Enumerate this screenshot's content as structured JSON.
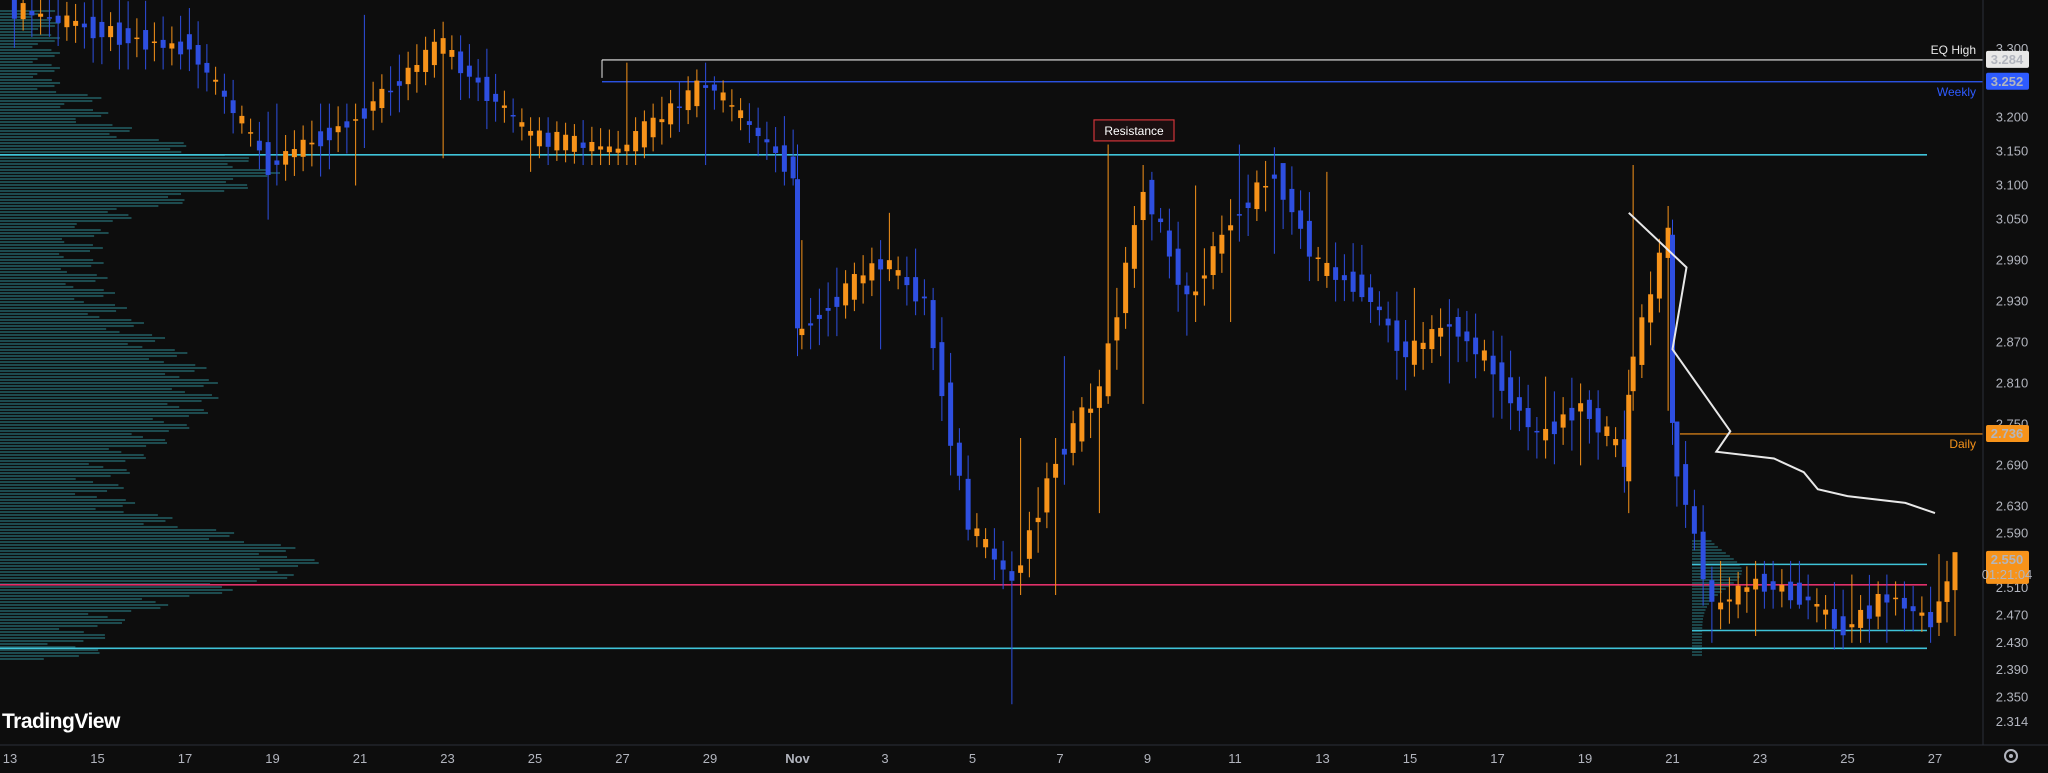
{
  "brand": "TradingView",
  "colors": {
    "background": "#0d0d0d",
    "bull": "#f7931a",
    "bear": "#2e4fe0",
    "cyan_line": "#3fc3d8",
    "magenta_line": "#e0306a",
    "white_line": "#e8e8e8",
    "weekly": "#2e5bff",
    "daily": "#f7931a",
    "volume_profile": "#2b7f87",
    "resistance_border": "#d0343a",
    "axis_text": "#b2b5be"
  },
  "icons": {
    "settings": "gear-icon"
  },
  "chart_data": {
    "type": "candlestick",
    "title": "",
    "y_range": [
      2.29,
      3.33
    ],
    "y_ticks": [
      "3.300",
      "3.200",
      "3.150",
      "3.100",
      "3.050",
      "2.990",
      "2.930",
      "2.870",
      "2.810",
      "2.750",
      "2.690",
      "2.630",
      "2.590",
      "2.510",
      "2.470",
      "2.430",
      "2.390",
      "2.350",
      "2.314"
    ],
    "x_ticks": [
      "13",
      "15",
      "17",
      "19",
      "21",
      "23",
      "25",
      "27",
      "29",
      "Nov",
      "3",
      "5",
      "7",
      "9",
      "11",
      "13",
      "15",
      "17",
      "19",
      "21",
      "23",
      "25",
      "27"
    ],
    "grid": false,
    "current_price": "2.550",
    "countdown": "01:21:04",
    "levels": [
      {
        "name": "EQ High",
        "value": 3.284,
        "value_label": "3.284",
        "color": "#e8e8e8"
      },
      {
        "name": "Weekly",
        "value": 3.252,
        "value_label": "3.252",
        "color": "#2e5bff"
      },
      {
        "name": "Daily",
        "value": 2.736,
        "value_label": "2.736",
        "color": "#f7931a"
      }
    ],
    "horizontal_lines": [
      {
        "value": 3.145,
        "color": "#3fc3d8"
      },
      {
        "value": 2.515,
        "color": "#e0306a"
      },
      {
        "value": 2.422,
        "color": "#3fc3d8"
      }
    ],
    "range_box": {
      "top": 2.545,
      "bottom": 2.448
    },
    "annotation": {
      "text": "Resistance",
      "price": 3.18
    },
    "series": [
      {
        "x": "Oct 13",
        "o": 3.36,
        "h": 3.4,
        "l": 3.28,
        "c": 3.33
      },
      {
        "x": "Oct 15",
        "o": 3.33,
        "h": 3.4,
        "l": 3.27,
        "c": 3.3
      },
      {
        "x": "Oct 17",
        "o": 3.32,
        "h": 3.36,
        "l": 3.05,
        "c": 3.13
      },
      {
        "x": "Oct 19",
        "o": 3.13,
        "h": 3.22,
        "l": 3.1,
        "c": 3.2
      },
      {
        "x": "Oct 21",
        "o": 3.2,
        "h": 3.35,
        "l": 3.14,
        "c": 3.31
      },
      {
        "x": "Oct 23",
        "o": 3.3,
        "h": 3.32,
        "l": 3.12,
        "c": 3.17
      },
      {
        "x": "Oct 25",
        "o": 3.17,
        "h": 3.2,
        "l": 3.13,
        "c": 3.15
      },
      {
        "x": "Oct 27",
        "o": 3.15,
        "h": 3.28,
        "l": 3.13,
        "c": 3.25
      },
      {
        "x": "Oct 29",
        "o": 3.25,
        "h": 3.26,
        "l": 3.1,
        "c": 3.12
      },
      {
        "x": "Oct 31",
        "o": 3.12,
        "h": 3.16,
        "l": 2.85,
        "c": 2.88
      },
      {
        "x": "Nov 1",
        "o": 2.88,
        "h": 3.02,
        "l": 2.86,
        "c": 2.99
      },
      {
        "x": "Nov 3",
        "o": 2.99,
        "h": 3.06,
        "l": 2.91,
        "c": 2.93
      },
      {
        "x": "Nov 4",
        "o": 2.93,
        "h": 2.95,
        "l": 2.58,
        "c": 2.6
      },
      {
        "x": "Nov 5",
        "o": 2.6,
        "h": 2.62,
        "l": 2.34,
        "c": 2.52
      },
      {
        "x": "Nov 6",
        "o": 2.52,
        "h": 2.73,
        "l": 2.5,
        "c": 2.7
      },
      {
        "x": "Nov 7",
        "o": 2.7,
        "h": 2.85,
        "l": 2.62,
        "c": 2.8
      },
      {
        "x": "Nov 8",
        "o": 2.8,
        "h": 3.16,
        "l": 2.78,
        "c": 3.1
      },
      {
        "x": "Nov 9",
        "o": 3.1,
        "h": 3.12,
        "l": 2.88,
        "c": 2.93
      },
      {
        "x": "Nov 10",
        "o": 2.93,
        "h": 3.1,
        "l": 2.9,
        "c": 3.05
      },
      {
        "x": "Nov 11",
        "o": 3.05,
        "h": 3.16,
        "l": 3.0,
        "c": 3.12
      },
      {
        "x": "Nov 12",
        "o": 3.12,
        "h": 3.13,
        "l": 2.96,
        "c": 2.98
      },
      {
        "x": "Nov 13",
        "o": 2.98,
        "h": 3.12,
        "l": 2.93,
        "c": 2.95
      },
      {
        "x": "Nov 14",
        "o": 2.95,
        "h": 2.97,
        "l": 2.8,
        "c": 2.85
      },
      {
        "x": "Nov 15",
        "o": 2.85,
        "h": 2.95,
        "l": 2.81,
        "c": 2.9
      },
      {
        "x": "Nov 16",
        "o": 2.9,
        "h": 2.92,
        "l": 2.76,
        "c": 2.83
      },
      {
        "x": "Nov 17",
        "o": 2.83,
        "h": 2.88,
        "l": 2.7,
        "c": 2.73
      },
      {
        "x": "Nov 18",
        "o": 2.73,
        "h": 2.82,
        "l": 2.69,
        "c": 2.78
      },
      {
        "x": "Nov 19",
        "o": 2.78,
        "h": 2.8,
        "l": 2.65,
        "c": 2.7
      },
      {
        "x": "Nov 20",
        "o": 2.66,
        "h": 2.83,
        "l": 2.62,
        "c": 2.8
      },
      {
        "x": "Nov 20",
        "o": 2.8,
        "h": 3.13,
        "l": 2.77,
        "c": 3.04
      },
      {
        "x": "Nov 21",
        "o": 3.04,
        "h": 3.05,
        "l": 2.72,
        "c": 2.74
      },
      {
        "x": "Nov 21",
        "o": 2.74,
        "h": 2.75,
        "l": 2.43,
        "c": 2.48
      },
      {
        "x": "Nov 22",
        "o": 2.48,
        "h": 2.55,
        "l": 2.44,
        "c": 2.52
      },
      {
        "x": "Nov 23",
        "o": 2.52,
        "h": 2.55,
        "l": 2.48,
        "c": 2.5
      },
      {
        "x": "Nov 24",
        "o": 2.5,
        "h": 2.53,
        "l": 2.42,
        "c": 2.45
      },
      {
        "x": "Nov 25",
        "o": 2.45,
        "h": 2.53,
        "l": 2.43,
        "c": 2.5
      },
      {
        "x": "Nov 26",
        "o": 2.5,
        "h": 2.52,
        "l": 2.43,
        "c": 2.46
      },
      {
        "x": "Nov 27",
        "o": 2.46,
        "h": 2.56,
        "l": 2.44,
        "c": 2.55
      }
    ],
    "moving_average": {
      "color": "#e8e8e8",
      "points": [
        {
          "x": "Nov 20",
          "y": 3.06
        },
        {
          "x": "Nov 21",
          "y": 2.98
        },
        {
          "x": "Nov 21",
          "y": 2.86
        },
        {
          "x": "Nov 22",
          "y": 2.74
        },
        {
          "x": "Nov 22",
          "y": 2.71
        },
        {
          "x": "Nov 23",
          "y": 2.7
        },
        {
          "x": "Nov 24",
          "y": 2.68
        },
        {
          "x": "Nov 24",
          "y": 2.655
        },
        {
          "x": "Nov 25",
          "y": 2.645
        },
        {
          "x": "Nov 26",
          "y": 2.635
        },
        {
          "x": "Nov 27",
          "y": 2.62
        }
      ]
    }
  }
}
